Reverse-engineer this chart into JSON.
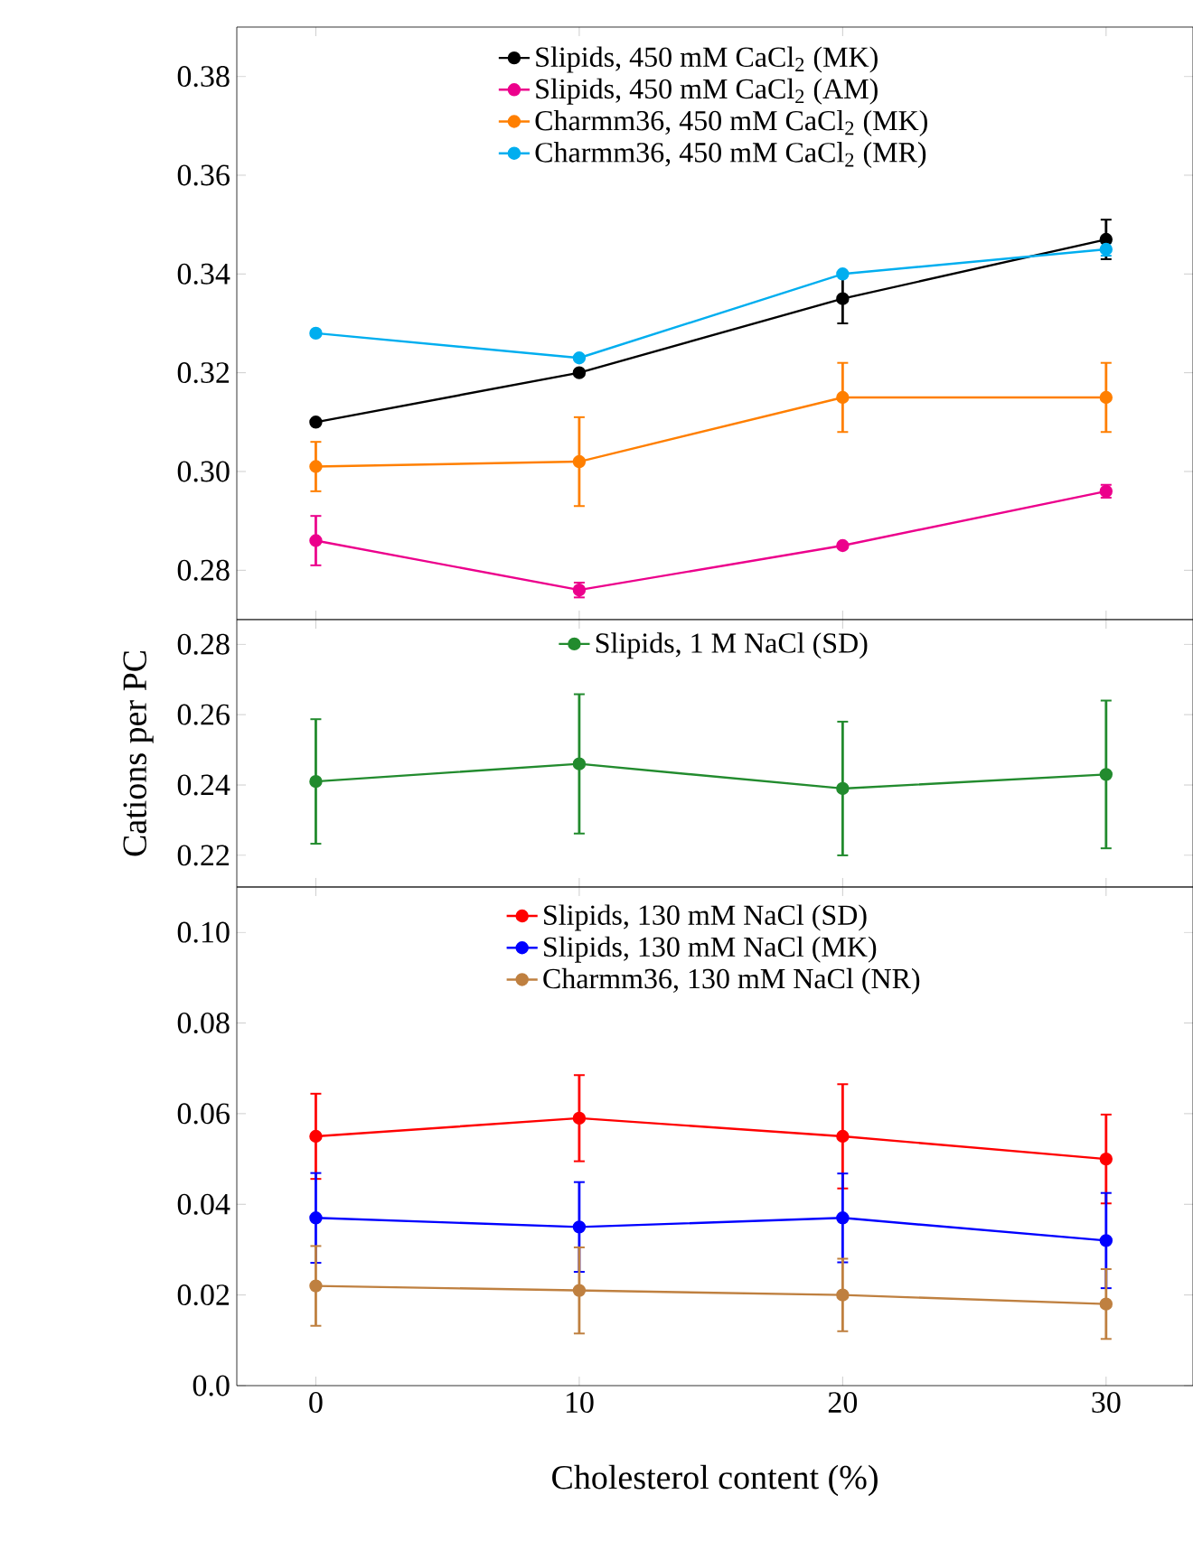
{
  "chart_data": [
    {
      "type": "line",
      "marker": "circle",
      "line_style": "solid",
      "legend": "top",
      "tick_labels": "y",
      "x": [
        0,
        10,
        20,
        30
      ],
      "xlim": [
        -3,
        33.3
      ],
      "xticks": [
        0,
        10,
        20,
        30
      ],
      "ylim": [
        0.27,
        0.39
      ],
      "yticks": [
        0.28,
        {
          "value": 0.3,
          "label": "0.30"
        },
        0.32,
        0.34,
        0.36,
        0.38
      ],
      "series": [
        {
          "name": "Slipids, 450 mM CaCl$_{2}$ (MK)",
          "color": "#000000",
          "values": [
            0.31,
            0.32,
            0.335,
            0.347
          ],
          "errors": [
            null,
            null,
            0.005,
            0.004
          ]
        },
        {
          "name": "Slipids, 450 mM CaCl$_{2}$ (AM)",
          "color": "#ec008c",
          "values": [
            0.286,
            0.276,
            0.285,
            0.296
          ],
          "errors": [
            0.005,
            0.0015,
            null,
            0.0013
          ]
        },
        {
          "name": "Charmm36, 450 mM CaCl$_{2}$ (MK)",
          "color": "#ff7f00",
          "values": [
            0.301,
            0.302,
            0.315,
            0.315
          ],
          "errors": [
            0.005,
            0.009,
            0.007,
            0.007
          ]
        },
        {
          "name": "Charmm36, 450 mM CaCl$_{2}$ (MR)",
          "color": "#00aeef",
          "values": [
            0.328,
            0.323,
            0.34,
            0.345
          ],
          "errors": [
            null,
            null,
            null,
            0.0013
          ]
        }
      ]
    },
    {
      "type": "line",
      "marker": "circle",
      "line_style": "solid",
      "legend": "top",
      "tick_labels": "y",
      "ylabel": "Cations per PC",
      "x": [
        0,
        10,
        20,
        30
      ],
      "xlim": [
        -3,
        33.3
      ],
      "xticks": [
        0,
        10,
        20,
        30
      ],
      "ylim": [
        0.211,
        0.287
      ],
      "yticks": [
        0.22,
        0.24,
        0.26,
        0.28
      ],
      "series": [
        {
          "name": "Slipids, 1 M NaCl (SD)",
          "color": "#228b2e",
          "values": [
            0.241,
            0.246,
            0.239,
            0.243
          ],
          "errors": [
            0.0177,
            0.0198,
            0.019,
            0.021
          ]
        }
      ]
    },
    {
      "type": "line",
      "marker": "circle",
      "line_style": "solid",
      "legend": "top",
      "xlabel": "Cholesterol content (%)",
      "x": [
        0,
        10,
        20,
        30
      ],
      "xlim": [
        -3,
        33.3
      ],
      "xticks": [
        0,
        10,
        20,
        30
      ],
      "ylim": [
        0,
        0.11
      ],
      "yticks": [
        {
          "value": 0,
          "label": "0.0"
        },
        0.02,
        0.04,
        0.06,
        0.08,
        {
          "value": 0.1,
          "label": "0.10"
        }
      ],
      "series": [
        {
          "name": "Slipids, 130 mM NaCl (SD)",
          "color": "#ff0000",
          "values": [
            0.055,
            0.059,
            0.055,
            0.05
          ],
          "errors": [
            0.0094,
            0.0095,
            0.0115,
            0.0098
          ]
        },
        {
          "name": "Slipids, 130 mM NaCl (MK)",
          "color": "#0000ff",
          "values": [
            0.037,
            0.035,
            0.037,
            0.032
          ],
          "errors": [
            0.0099,
            0.0099,
            0.0098,
            0.0105
          ]
        },
        {
          "name": "Charmm36, 130 mM NaCl (NR)",
          "color": "#bf8040",
          "values": [
            0.022,
            0.021,
            0.02,
            0.018
          ],
          "errors": [
            0.0088,
            0.0095,
            0.008,
            0.0077
          ]
        }
      ]
    }
  ]
}
